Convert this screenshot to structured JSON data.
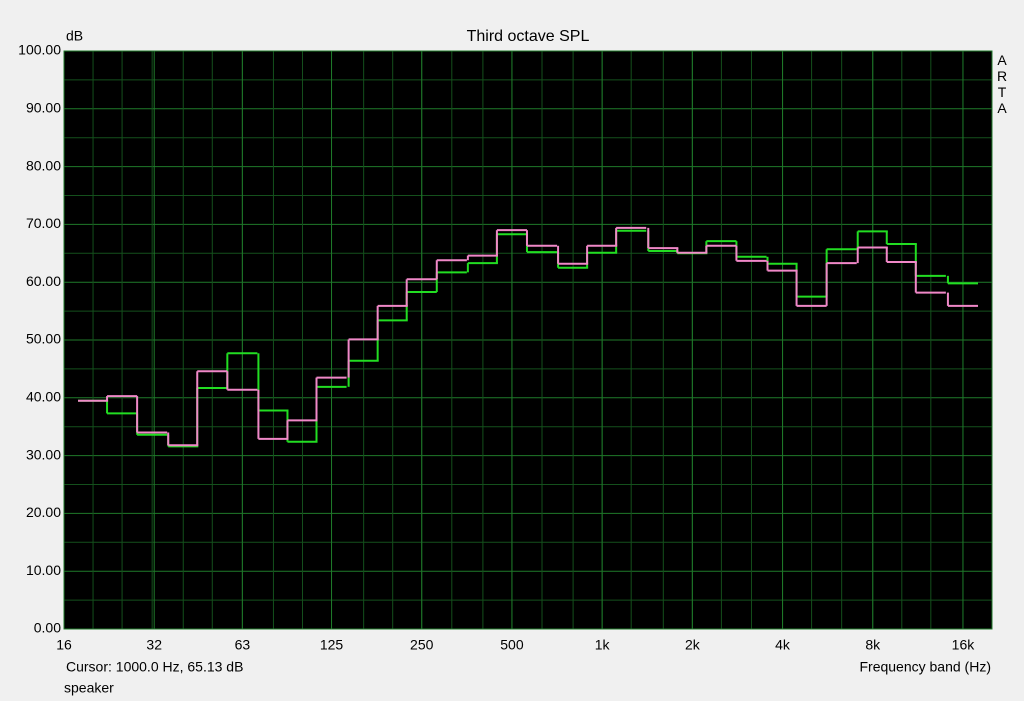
{
  "chart_data": {
    "type": "step",
    "title": "Third octave SPL",
    "y_label": "dB",
    "x_label": "Frequency band (Hz)",
    "cursor_text": "Cursor:  1000.0 Hz, 65.13 dB",
    "footer": "speaker",
    "brand": "ARTA",
    "log_x": true,
    "grid": true,
    "x": [
      20,
      25,
      31.5,
      40,
      50,
      63,
      80,
      100,
      125,
      160,
      200,
      250,
      315,
      400,
      500,
      630,
      800,
      1000,
      1250,
      1600,
      2000,
      2500,
      3150,
      4000,
      5000,
      6300,
      8000,
      10000,
      12500,
      16000
    ],
    "series": [
      {
        "color": "#22dd22",
        "values": [
          39.5,
          37.3,
          33.6,
          31.6,
          41.7,
          47.7,
          37.8,
          32.4,
          41.9,
          46.4,
          53.4,
          58.3,
          61.7,
          63.3,
          68.3,
          65.2,
          62.5,
          65.1,
          68.9,
          65.4,
          65.0,
          67.1,
          64.4,
          63.2,
          57.5,
          65.7,
          68.8,
          66.6,
          61.1,
          59.8
        ]
      },
      {
        "color": "#f088c8",
        "values": [
          39.5,
          40.3,
          34.0,
          31.8,
          44.6,
          41.4,
          32.9,
          36.1,
          43.5,
          50.1,
          55.9,
          60.5,
          63.8,
          64.6,
          69.0,
          66.3,
          63.2,
          66.3,
          69.4,
          65.9,
          65.1,
          66.3,
          63.7,
          62.0,
          55.9,
          63.3,
          66.0,
          63.5,
          58.2,
          55.9
        ]
      }
    ],
    "xlim": [
      16,
      20000
    ],
    "xticks": [
      16,
      32,
      63,
      125,
      250,
      500,
      {
        "value": 1000,
        "label": "1k"
      },
      {
        "value": 2000,
        "label": "2k"
      },
      {
        "value": 4000,
        "label": "4k"
      },
      {
        "value": 8000,
        "label": "8k"
      },
      {
        "value": 16000,
        "label": "16k"
      }
    ],
    "ylim": [
      0,
      100
    ],
    "yticks": [
      {
        "value": 0,
        "label": "0.00"
      },
      {
        "value": 10,
        "label": "10.00"
      },
      {
        "value": 20,
        "label": "20.00"
      },
      {
        "value": 30,
        "label": "30.00"
      },
      {
        "value": 40,
        "label": "40.00"
      },
      {
        "value": 50,
        "label": "50.00"
      },
      {
        "value": 60,
        "label": "60.00"
      },
      {
        "value": 70,
        "label": "70.00"
      },
      {
        "value": 80,
        "label": "80.00"
      },
      {
        "value": 90,
        "label": "90.00"
      },
      {
        "value": 100,
        "label": "100.00"
      }
    ]
  }
}
